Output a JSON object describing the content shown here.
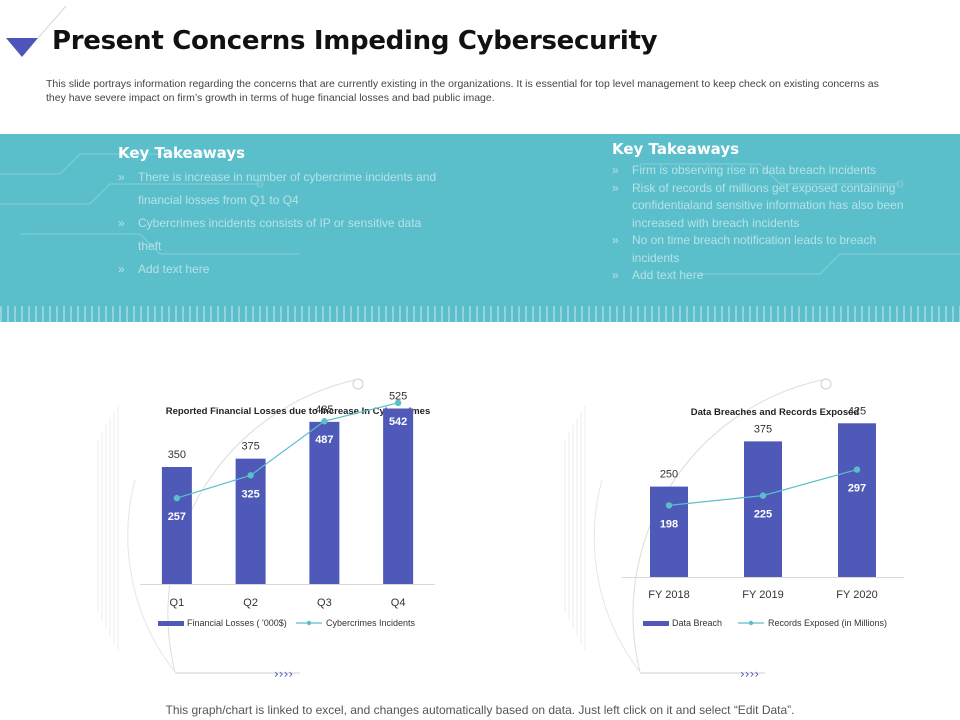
{
  "title": "Present Concerns Impeding Cybersecurity",
  "description": "This slide portrays information regarding the concerns that are currently existing in the organizations. It is essential for top level management to keep check on existing concerns as they have severe impact on firm’s growth in terms of huge financial losses and bad public image.",
  "takeaways_left": {
    "heading": "Key Takeaways",
    "items": [
      "There is increase in number of cybercrime incidents and financial losses from Q1 to Q4",
      "Cybercrimes incidents consists of IP or sensitive data theft",
      "Add text here"
    ]
  },
  "takeaways_right": {
    "heading": "Key Takeaways",
    "items": [
      "Firm is observing rise in data breach incidents",
      "Risk of records of millions get exposed containing confidentialand sensitive information has also been increased with breach incidents",
      "No on time breach notification leads to breach incidents",
      "Add text here"
    ]
  },
  "footer": "This graph/chart is linked to excel, and changes automatically based on data. Just left click on it and select “Edit Data”.",
  "colors": {
    "bar": "#4f5ab8",
    "line": "#5bbfcb",
    "band": "#5bbfcb",
    "accent": "#4d56b8"
  },
  "chart_data": [
    {
      "type": "bar",
      "title": "Reported Financial Losses due to Increase In Cybercrimes",
      "categories": [
        "Q1",
        "Q2",
        "Q3",
        "Q4"
      ],
      "series": [
        {
          "name": "Financial Losses ('000$)",
          "kind": "bar",
          "values": [
            350,
            375,
            485,
            525
          ]
        },
        {
          "name": "Cybercrimes Incidents",
          "kind": "line",
          "values": [
            257,
            325,
            487,
            542
          ]
        }
      ],
      "legend": [
        "Financial Losses ( '000$)",
        "Cybercrimes Incidents"
      ],
      "legend_position": "bottom",
      "bar_ylim": [
        0,
        700
      ],
      "line_ylim": [
        0,
        700
      ]
    },
    {
      "type": "bar",
      "title": "Data Breaches and Records Exposed",
      "categories": [
        "FY 2018",
        "FY 2019",
        "FY 2020"
      ],
      "series": [
        {
          "name": "Data Breach",
          "kind": "bar",
          "values": [
            250,
            375,
            425
          ]
        },
        {
          "name": "Records Exposed (in Millions)",
          "kind": "line",
          "values": [
            198,
            225,
            297
          ]
        }
      ],
      "legend": [
        "Data Breach",
        "Records Exposed (in Millions)"
      ],
      "legend_position": "bottom",
      "bar_ylim": [
        0,
        600
      ],
      "line_ylim": [
        0,
        600
      ]
    }
  ]
}
